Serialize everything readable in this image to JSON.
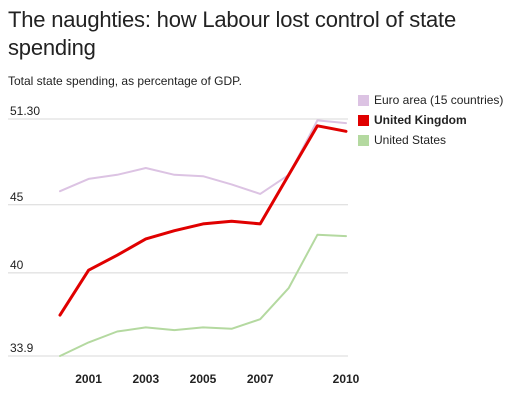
{
  "title": "The naughties: how Labour lost control of state spending",
  "subtitle": "Total state spending, as percentage of GDP.",
  "chart_data": {
    "type": "line",
    "x": [
      2000,
      2001,
      2002,
      2003,
      2004,
      2005,
      2006,
      2007,
      2008,
      2009,
      2010
    ],
    "xticks": [
      "2001",
      "2003",
      "2005",
      "2007",
      "2010"
    ],
    "xtick_values": [
      2001,
      2003,
      2005,
      2007,
      2010
    ],
    "yticks": [
      "33.9",
      "40",
      "45",
      "51.30"
    ],
    "ytick_values": [
      33.9,
      40,
      45,
      51.3
    ],
    "ylim": [
      33.9,
      51.3
    ],
    "xlim": [
      2000,
      2010
    ],
    "grid": true,
    "legend_position": "top-right",
    "series": [
      {
        "name": "Euro area (15 countries)",
        "color": "#dcc3e3",
        "bold": false,
        "values": [
          46.0,
          46.9,
          47.2,
          47.7,
          47.2,
          47.1,
          46.5,
          45.8,
          47.2,
          51.2,
          51.0
        ]
      },
      {
        "name": "United Kingdom",
        "color": "#e00000",
        "bold": true,
        "values": [
          36.9,
          40.2,
          41.3,
          42.5,
          43.1,
          43.6,
          43.8,
          43.6,
          47.2,
          50.8,
          50.4
        ]
      },
      {
        "name": "United States",
        "color": "#b4d9a0",
        "bold": false,
        "values": [
          33.9,
          34.9,
          35.7,
          36.0,
          35.8,
          36.0,
          35.9,
          36.6,
          38.9,
          42.8,
          42.7
        ]
      }
    ]
  }
}
